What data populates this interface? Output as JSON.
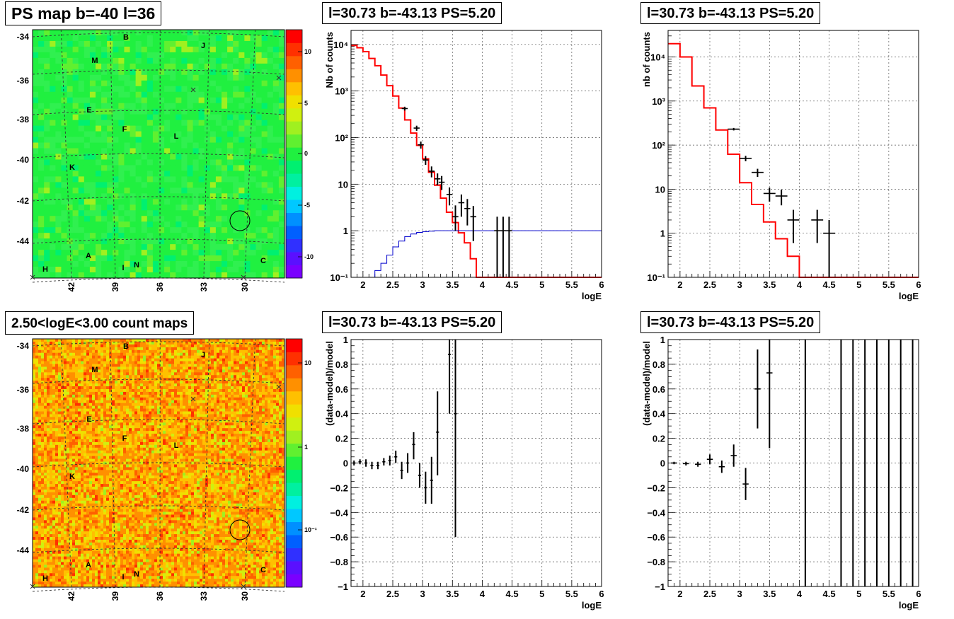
{
  "colors": {
    "red_hist": "#ff0000",
    "blue_hist": "#0000cc",
    "data": "#000000",
    "grid": "#555555"
  },
  "palette": [
    "#7a00ff",
    "#5a10ff",
    "#3030ff",
    "#0060ff",
    "#0090ff",
    "#00c8ff",
    "#00f0e0",
    "#00f0a0",
    "#00f070",
    "#20f040",
    "#60f030",
    "#a0f020",
    "#d0f010",
    "#f0e000",
    "#ffc000",
    "#ff9000",
    "#ff6000",
    "#ff3000",
    "#ff0000"
  ],
  "maps": [
    {
      "title": "PS map b=-40 l=36",
      "kind": "ps",
      "y_ticks": [
        "-34",
        "-36",
        "-38",
        "-40",
        "-42",
        "-44"
      ],
      "x_ticks": [
        "42",
        "39",
        "36",
        "33",
        "30"
      ],
      "colorbar_ticks": [
        "10",
        "5",
        "0",
        "-5",
        "-10"
      ],
      "labels": [
        "B",
        "J",
        "M",
        "E",
        "F",
        "L",
        "K",
        "A",
        "I",
        "N",
        "H",
        "C"
      ]
    },
    {
      "title": "2.50<logE<3.00 count maps",
      "kind": "count",
      "y_ticks": [
        "-34",
        "-36",
        "-38",
        "-40",
        "-42",
        "-44"
      ],
      "x_ticks": [
        "42",
        "39",
        "36",
        "33",
        "30"
      ],
      "colorbar_ticks": [
        "10",
        "1",
        "10⁻¹"
      ],
      "labels": [
        "B",
        "J",
        "M",
        "E",
        "F",
        "L",
        "K",
        "A",
        "I",
        "N",
        "H",
        "C"
      ]
    }
  ],
  "chart_data": [
    {
      "type": "line",
      "title": "l=30.73 b=-43.13 PS=5.20",
      "xlabel": "logE",
      "ylabel": "Nb of counts",
      "log_y": true,
      "xlim": [
        1.8,
        6
      ],
      "ylim": [
        0.1,
        20000
      ],
      "grid": true,
      "x_ticks": [
        "2",
        "2.5",
        "3",
        "3.5",
        "4",
        "4.5",
        "5",
        "5.5",
        "6"
      ],
      "y_ticks": [
        "10⁻¹",
        "1",
        "10",
        "10²",
        "10³",
        "10⁴"
      ],
      "series": [
        {
          "role": "model",
          "color": "#ff0000",
          "bin_edges": [
            1.8,
            1.9,
            2.0,
            2.1,
            2.2,
            2.3,
            2.4,
            2.5,
            2.6,
            2.7,
            2.8,
            2.9,
            3.0,
            3.1,
            3.2,
            3.3,
            3.4,
            3.5,
            3.6,
            3.7,
            3.8,
            3.9,
            4.0,
            6.0
          ],
          "values": [
            9500,
            8500,
            7000,
            5000,
            3500,
            2200,
            1300,
            780,
            430,
            240,
            125,
            68,
            35,
            18,
            9.5,
            5,
            2.5,
            1.5,
            0.9,
            0.55,
            0.25,
            0.1,
            0.1
          ]
        },
        {
          "role": "efficiency",
          "color": "#0000cc",
          "bin_edges": [
            2.1,
            2.2,
            2.3,
            2.4,
            2.5,
            2.6,
            2.7,
            2.8,
            2.9,
            3.0,
            3.1,
            3.2,
            6.0
          ],
          "values": [
            0.1,
            0.14,
            0.2,
            0.3,
            0.45,
            0.6,
            0.75,
            0.85,
            0.92,
            0.96,
            0.98,
            1.0
          ]
        },
        {
          "role": "data",
          "color": "#000000",
          "points": [
            {
              "x": 2.7,
              "y": 420,
              "lo": 380,
              "hi": 460
            },
            {
              "x": 2.9,
              "y": 160,
              "lo": 140,
              "hi": 180
            },
            {
              "x": 2.97,
              "y": 70,
              "lo": 58,
              "hi": 82
            },
            {
              "x": 3.05,
              "y": 33,
              "lo": 26,
              "hi": 40
            },
            {
              "x": 3.15,
              "y": 19,
              "lo": 14,
              "hi": 24
            },
            {
              "x": 3.25,
              "y": 13,
              "lo": 9.5,
              "hi": 17
            },
            {
              "x": 3.32,
              "y": 11,
              "lo": 7.5,
              "hi": 15
            },
            {
              "x": 3.45,
              "y": 6,
              "lo": 3.5,
              "hi": 8.5
            },
            {
              "x": 3.55,
              "y": 2,
              "lo": 1,
              "hi": 3.5
            },
            {
              "x": 3.65,
              "y": 4,
              "lo": 2,
              "hi": 6
            },
            {
              "x": 3.75,
              "y": 3,
              "lo": 1.3,
              "hi": 4.8
            },
            {
              "x": 3.85,
              "y": 2,
              "lo": 0.6,
              "hi": 3.4
            },
            {
              "x": 4.25,
              "y": 1,
              "lo": 0.1,
              "hi": 2
            },
            {
              "x": 4.35,
              "y": 1,
              "lo": 0.1,
              "hi": 2
            },
            {
              "x": 4.45,
              "y": 1,
              "lo": 0.1,
              "hi": 2
            }
          ]
        }
      ]
    },
    {
      "type": "line",
      "title": "l=30.73 b=-43.13 PS=5.20",
      "xlabel": "logE",
      "ylabel": "nb of counts",
      "log_y": true,
      "xlim": [
        1.8,
        6
      ],
      "ylim": [
        0.1,
        40000
      ],
      "grid": true,
      "x_ticks": [
        "2",
        "2.5",
        "3",
        "3.5",
        "4",
        "4.5",
        "5",
        "5.5",
        "6"
      ],
      "y_ticks": [
        "10⁻¹",
        "1",
        "10",
        "10²",
        "10³",
        "10⁴"
      ],
      "series": [
        {
          "role": "model",
          "color": "#ff0000",
          "bin_edges": [
            1.8,
            2.0,
            2.2,
            2.4,
            2.6,
            2.8,
            3.0,
            3.2,
            3.4,
            3.6,
            3.8,
            4.0,
            4.2,
            6.0
          ],
          "values": [
            20000,
            10000,
            2200,
            700,
            220,
            62,
            14,
            4.5,
            1.8,
            0.75,
            0.3,
            0.1,
            0.1
          ]
        },
        {
          "role": "data",
          "color": "#000000",
          "points": [
            {
              "x": 2.9,
              "y": 230,
              "lo": 215,
              "hi": 245
            },
            {
              "x": 3.1,
              "y": 50,
              "lo": 43,
              "hi": 57
            },
            {
              "x": 3.3,
              "y": 24,
              "lo": 19,
              "hi": 29
            },
            {
              "x": 3.5,
              "y": 8,
              "lo": 5.2,
              "hi": 10.8
            },
            {
              "x": 3.7,
              "y": 7,
              "lo": 4.3,
              "hi": 9.7
            },
            {
              "x": 3.9,
              "y": 2,
              "lo": 0.6,
              "hi": 3.4
            },
            {
              "x": 4.3,
              "y": 2,
              "lo": 0.6,
              "hi": 3.4
            },
            {
              "x": 4.5,
              "y": 1,
              "lo": 0.1,
              "hi": 2
            }
          ]
        }
      ]
    },
    {
      "type": "scatter",
      "title": "l=30.73 b=-43.13 PS=5.20",
      "xlabel": "logE",
      "ylabel": "(data-model)/model",
      "log_y": false,
      "xlim": [
        1.8,
        6
      ],
      "ylim": [
        -1,
        1
      ],
      "grid": true,
      "x_ticks": [
        "2",
        "2.5",
        "3",
        "3.5",
        "4",
        "4.5",
        "5",
        "5.5",
        "6"
      ],
      "y_ticks": [
        "−1",
        "−0.8",
        "−0.6",
        "−0.4",
        "−0.2",
        "0",
        "0.2",
        "0.4",
        "0.6",
        "0.8",
        "1"
      ],
      "series": [
        {
          "role": "data",
          "color": "#000000",
          "points": [
            {
              "x": 1.85,
              "y": 0.0,
              "lo": -0.02,
              "hi": 0.02,
              "w": 0.05
            },
            {
              "x": 1.95,
              "y": 0.01,
              "lo": -0.01,
              "hi": 0.03,
              "w": 0.05
            },
            {
              "x": 2.05,
              "y": 0.0,
              "lo": -0.03,
              "hi": 0.03,
              "w": 0.05
            },
            {
              "x": 2.15,
              "y": -0.02,
              "lo": -0.05,
              "hi": 0.01,
              "w": 0.05
            },
            {
              "x": 2.25,
              "y": -0.02,
              "lo": -0.05,
              "hi": 0.01,
              "w": 0.05
            },
            {
              "x": 2.35,
              "y": 0.01,
              "lo": -0.02,
              "hi": 0.04,
              "w": 0.05
            },
            {
              "x": 2.45,
              "y": 0.02,
              "lo": -0.02,
              "hi": 0.06,
              "w": 0.05
            },
            {
              "x": 2.55,
              "y": 0.05,
              "lo": 0.0,
              "hi": 0.1,
              "w": 0.05
            },
            {
              "x": 2.65,
              "y": -0.06,
              "lo": -0.13,
              "hi": 0.01,
              "w": 0.05
            },
            {
              "x": 2.75,
              "y": 0.0,
              "lo": -0.08,
              "hi": 0.08,
              "w": 0.05
            },
            {
              "x": 2.85,
              "y": 0.15,
              "lo": 0.03,
              "hi": 0.25,
              "w": 0.05
            },
            {
              "x": 2.95,
              "y": -0.1,
              "lo": -0.2,
              "hi": 0.0,
              "w": 0.05
            },
            {
              "x": 3.05,
              "y": -0.2,
              "lo": -0.33,
              "hi": -0.07,
              "w": 0.05
            },
            {
              "x": 3.15,
              "y": -0.14,
              "lo": -0.33,
              "hi": 0.05,
              "w": 0.05
            },
            {
              "x": 3.25,
              "y": 0.25,
              "lo": -0.1,
              "hi": 0.58,
              "w": 0.05
            },
            {
              "x": 3.45,
              "y": 0.88,
              "lo": 0.4,
              "hi": 1.0,
              "w": 0.05
            },
            {
              "x": 3.55,
              "y": 0.4,
              "lo": -0.6,
              "hi": 1.0,
              "w": 0.05
            }
          ]
        }
      ]
    },
    {
      "type": "scatter",
      "title": "l=30.73 b=-43.13 PS=5.20",
      "xlabel": "logE",
      "ylabel": "(data-model)/model",
      "log_y": false,
      "xlim": [
        1.8,
        6
      ],
      "ylim": [
        -1,
        1
      ],
      "grid": true,
      "x_ticks": [
        "2",
        "2.5",
        "3",
        "3.5",
        "4",
        "4.5",
        "5",
        "5.5",
        "6"
      ],
      "y_ticks": [
        "−1",
        "−0.8",
        "−0.6",
        "−0.4",
        "−0.2",
        "0",
        "0.2",
        "0.4",
        "0.6",
        "0.8",
        "1"
      ],
      "series": [
        {
          "role": "data",
          "color": "#000000",
          "points": [
            {
              "x": 1.9,
              "y": 0.0,
              "lo": -0.01,
              "hi": 0.01,
              "w": 0.1
            },
            {
              "x": 2.1,
              "y": -0.005,
              "lo": -0.02,
              "hi": 0.01,
              "w": 0.1
            },
            {
              "x": 2.3,
              "y": -0.01,
              "lo": -0.03,
              "hi": 0.01,
              "w": 0.1
            },
            {
              "x": 2.5,
              "y": 0.03,
              "lo": -0.01,
              "hi": 0.07,
              "w": 0.1
            },
            {
              "x": 2.7,
              "y": -0.03,
              "lo": -0.08,
              "hi": 0.02,
              "w": 0.1
            },
            {
              "x": 2.9,
              "y": 0.06,
              "lo": -0.03,
              "hi": 0.15,
              "w": 0.1
            },
            {
              "x": 3.1,
              "y": -0.17,
              "lo": -0.3,
              "hi": -0.04,
              "w": 0.1
            },
            {
              "x": 3.3,
              "y": 0.6,
              "lo": 0.28,
              "hi": 0.92,
              "w": 0.1
            },
            {
              "x": 3.5,
              "y": 0.73,
              "lo": 0.12,
              "hi": 1.0,
              "w": 0.1
            },
            {
              "x": 4.1,
              "y": 1.0,
              "lo": -1.0,
              "hi": 1.0,
              "w": 0
            },
            {
              "x": 4.7,
              "y": 1.0,
              "lo": -1.0,
              "hi": 1.0,
              "w": 0
            },
            {
              "x": 4.9,
              "y": 1.0,
              "lo": -1.0,
              "hi": 1.0,
              "w": 0
            },
            {
              "x": 5.1,
              "y": 1.0,
              "lo": -1.0,
              "hi": 1.0,
              "w": 0
            },
            {
              "x": 5.3,
              "y": 1.0,
              "lo": -1.0,
              "hi": 1.0,
              "w": 0
            },
            {
              "x": 5.5,
              "y": 1.0,
              "lo": -1.0,
              "hi": 1.0,
              "w": 0
            },
            {
              "x": 5.7,
              "y": 1.0,
              "lo": -1.0,
              "hi": 1.0,
              "w": 0
            },
            {
              "x": 5.9,
              "y": 1.0,
              "lo": -1.0,
              "hi": 1.0,
              "w": 0
            }
          ]
        }
      ]
    }
  ]
}
